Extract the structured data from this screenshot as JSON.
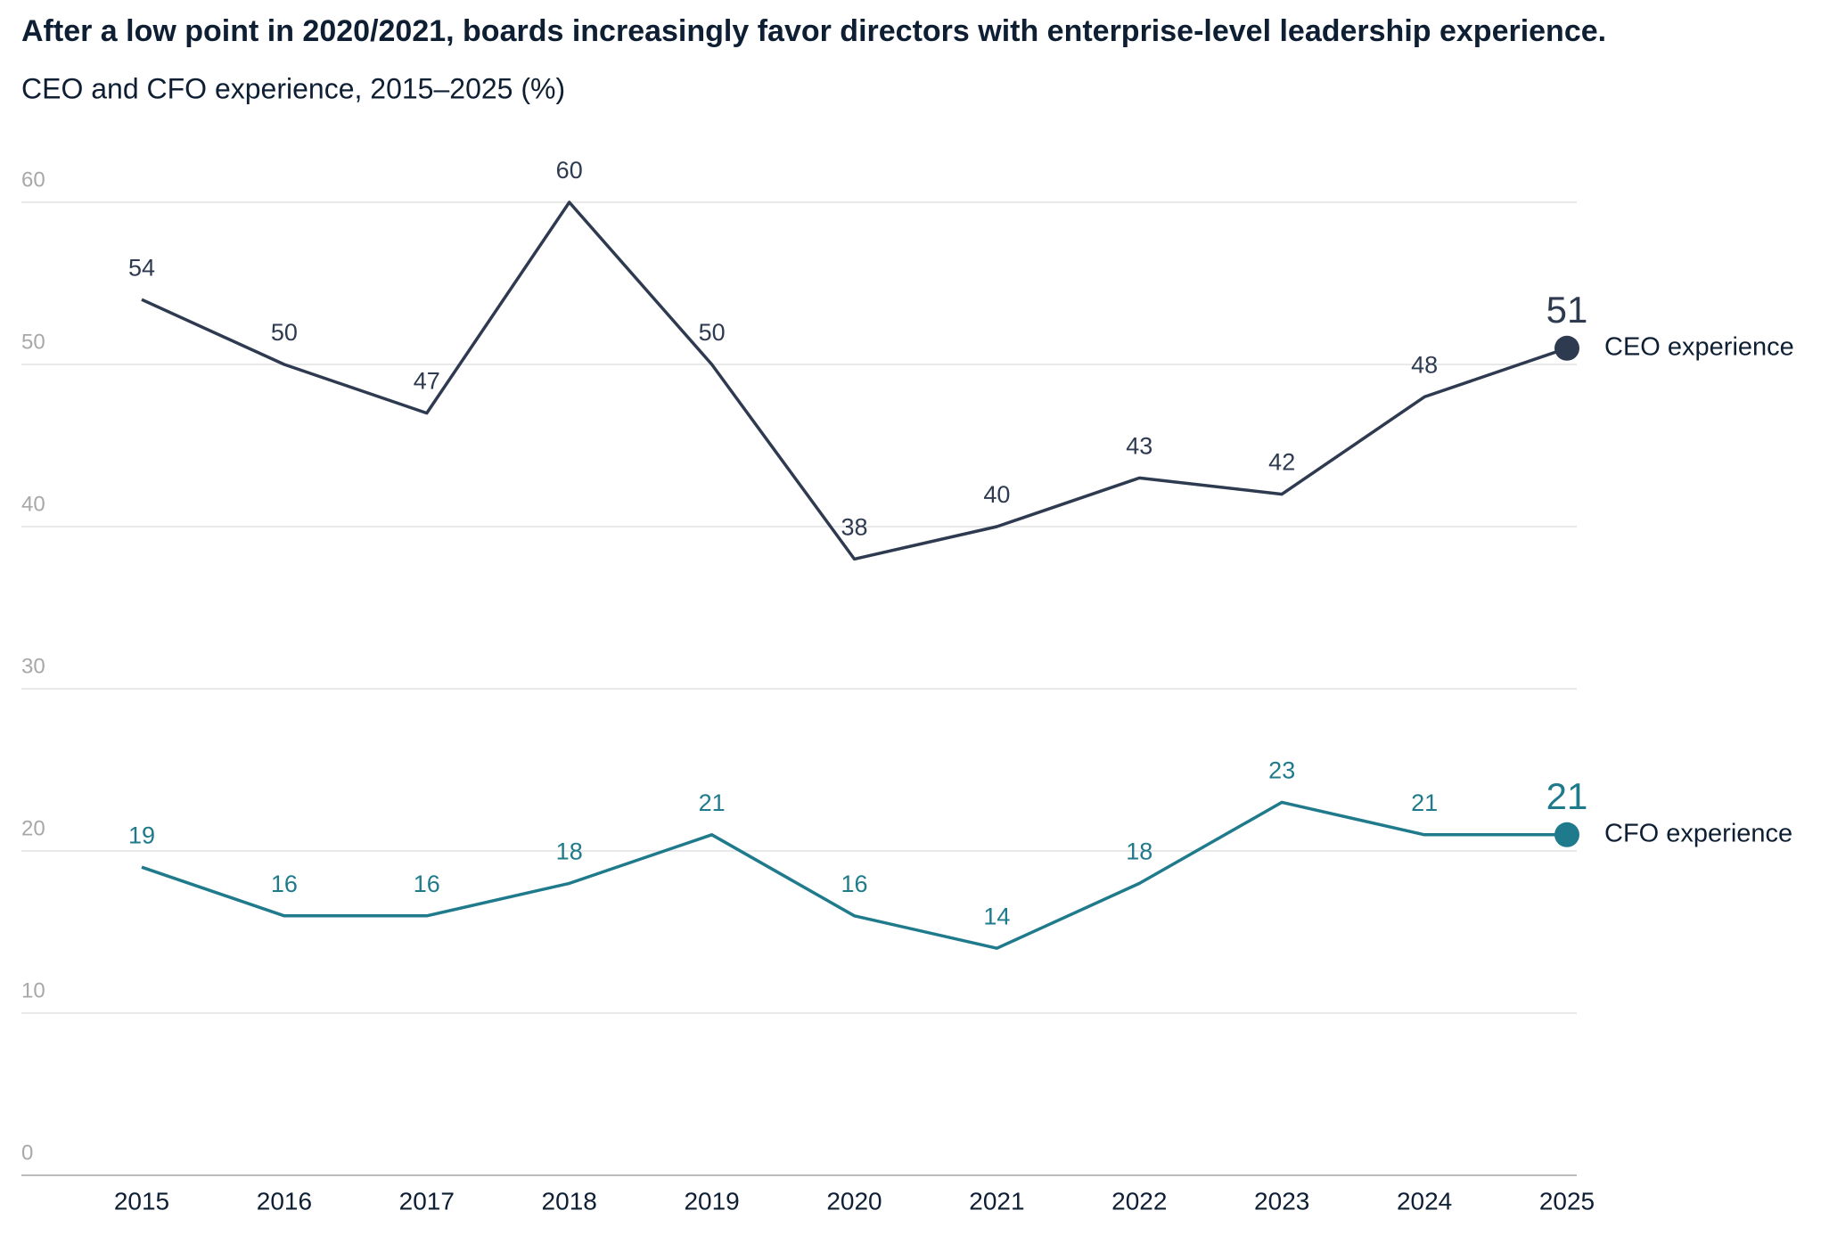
{
  "chart_data": {
    "type": "line",
    "title": "After a low point in 2020/2021, boards increasingly favor directors with enterprise-level leadership experience.",
    "subtitle": "CEO and CFO experience, 2015–2025 (%)",
    "categories": [
      "2015",
      "2016",
      "2017",
      "2018",
      "2019",
      "2020",
      "2021",
      "2022",
      "2023",
      "2024",
      "2025"
    ],
    "series": [
      {
        "name": "CEO experience",
        "color": "#2e3a4f",
        "values": [
          54,
          50,
          47,
          60,
          50,
          38,
          40,
          43,
          42,
          48,
          51
        ]
      },
      {
        "name": "CFO experience",
        "color": "#1f7a8c",
        "values": [
          19,
          16,
          16,
          18,
          21,
          16,
          14,
          18,
          23,
          21,
          21
        ]
      }
    ],
    "ylim": [
      0,
      60
    ],
    "yticks": [
      0,
      10,
      20,
      30,
      40,
      50,
      60
    ],
    "grid": true
  }
}
